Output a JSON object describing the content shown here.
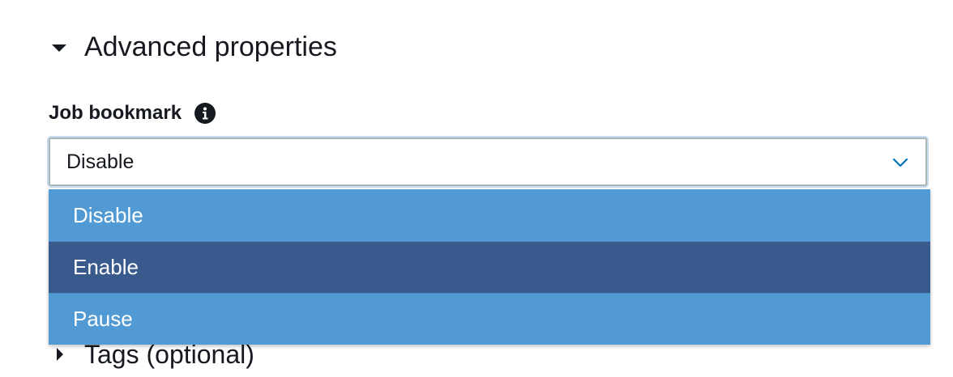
{
  "section": {
    "title": "Advanced properties",
    "expanded": true
  },
  "job_bookmark": {
    "label": "Job bookmark",
    "info_icon": "info-icon",
    "selected_value": "Disable",
    "options": [
      "Disable",
      "Enable",
      "Pause"
    ],
    "highlighted_option": "Enable"
  },
  "tags": {
    "title": "Tags (optional)",
    "expanded": false
  },
  "colors": {
    "option_bg": "#519ad3",
    "option_highlight_bg": "#385a8c",
    "focus_ring": "#c8dcf0",
    "chevron": "#0073bb"
  }
}
